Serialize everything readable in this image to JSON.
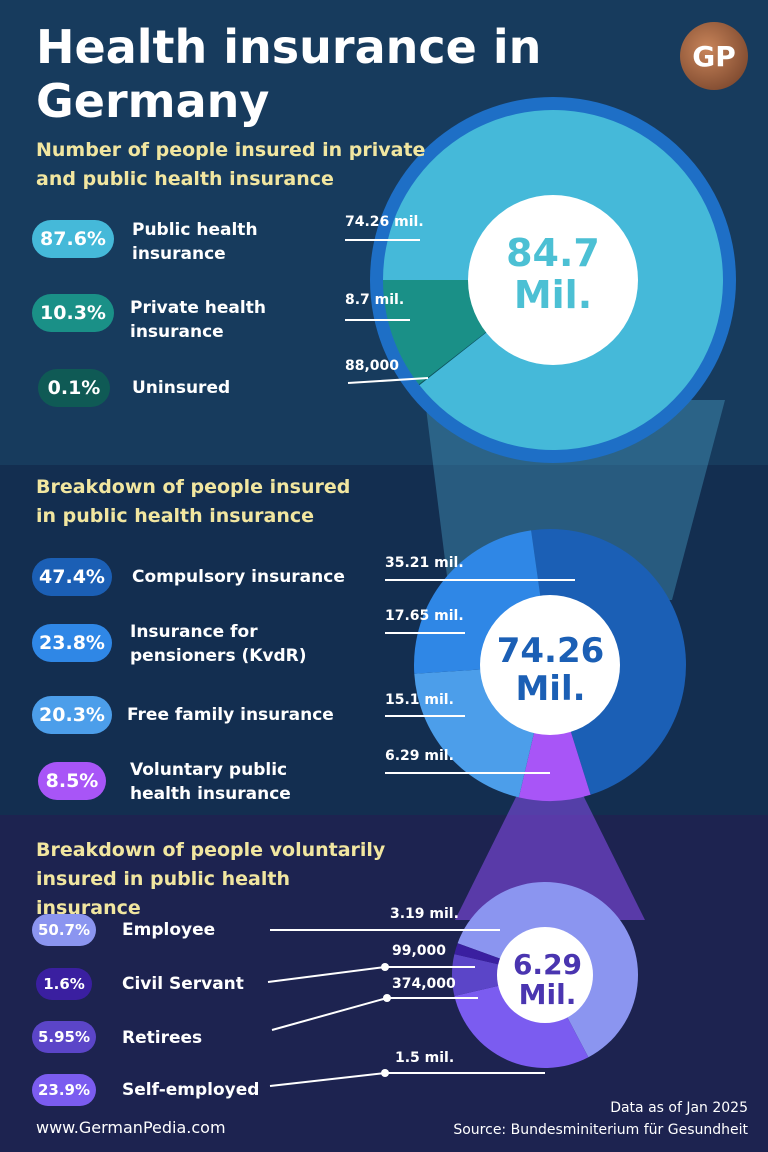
{
  "title": "Health insurance in Germany",
  "logo_text": "GP",
  "sections": [
    {
      "heading": "Number of people insured in private and public health insurance",
      "items": [
        {
          "pct": "87.6%",
          "label": "Public health insurance",
          "value": "74.26 mil.",
          "color": "#45b9d9"
        },
        {
          "pct": "10.3%",
          "label": "Private health insurance",
          "value": "8.7 mil.",
          "color": "#1a9087"
        },
        {
          "pct": "0.1%",
          "label": "Uninsured",
          "value": "88,000",
          "color": "#0f5a55"
        }
      ],
      "center": "84.7 Mil."
    },
    {
      "heading": "Breakdown of people insured in public health insurance",
      "items": [
        {
          "pct": "47.4%",
          "label": "Compulsory insurance",
          "value": "35.21 mil.",
          "color": "#1b5fb5"
        },
        {
          "pct": "23.8%",
          "label": "Insurance for pensioners (KvdR)",
          "value": "17.65 mil.",
          "color": "#2f87e6"
        },
        {
          "pct": "20.3%",
          "label": "Free family insurance",
          "value": "15.1 mil.",
          "color": "#4c9eea"
        },
        {
          "pct": "8.5%",
          "label": "Voluntary public health insurance",
          "value": "6.29 mil.",
          "color": "#a855f7"
        }
      ],
      "center": "74.26 Mil."
    },
    {
      "heading": "Breakdown of people voluntarily insured in public health insurance",
      "items": [
        {
          "pct": "50.7%",
          "label": "Employee",
          "value": "3.19 mil.",
          "color": "#8b95f0"
        },
        {
          "pct": "1.6%",
          "label": "Civil Servant",
          "value": "99,000",
          "color": "#3a1fa0"
        },
        {
          "pct": "5.95%",
          "label": "Retirees",
          "value": "374,000",
          "color": "#5b45c8"
        },
        {
          "pct": "23.9%",
          "label": "Self-employed",
          "value": "1.5 mil.",
          "color": "#7b5cf0"
        }
      ],
      "center": "6.29 Mil."
    }
  ],
  "footer": {
    "website": "www.GermanPedia.com",
    "date": "Data as of Jan 2025",
    "source": "Source: Bundesminiterium für Gesundheit"
  },
  "chart_data": [
    {
      "type": "pie",
      "center_label": "84.7 Mil.",
      "categories": [
        "Public health insurance",
        "Private health insurance",
        "Uninsured"
      ],
      "values": [
        87.6,
        10.3,
        0.1
      ],
      "data_labels": [
        "74.26 mil.",
        "8.7 mil.",
        "88,000"
      ]
    },
    {
      "type": "pie",
      "center_label": "74.26 Mil.",
      "categories": [
        "Compulsory insurance",
        "Insurance for pensioners (KvdR)",
        "Free family insurance",
        "Voluntary public health insurance"
      ],
      "values": [
        47.4,
        23.8,
        20.3,
        8.5
      ],
      "data_labels": [
        "35.21 mil.",
        "17.65 mil.",
        "15.1 mil.",
        "6.29 mil."
      ]
    },
    {
      "type": "pie",
      "center_label": "6.29 Mil.",
      "categories": [
        "Employee",
        "Civil Servant",
        "Retirees",
        "Self-employed"
      ],
      "values": [
        50.7,
        1.6,
        5.95,
        23.9
      ],
      "data_labels": [
        "3.19 mil.",
        "99,000",
        "374,000",
        "1.5 mil."
      ]
    }
  ]
}
